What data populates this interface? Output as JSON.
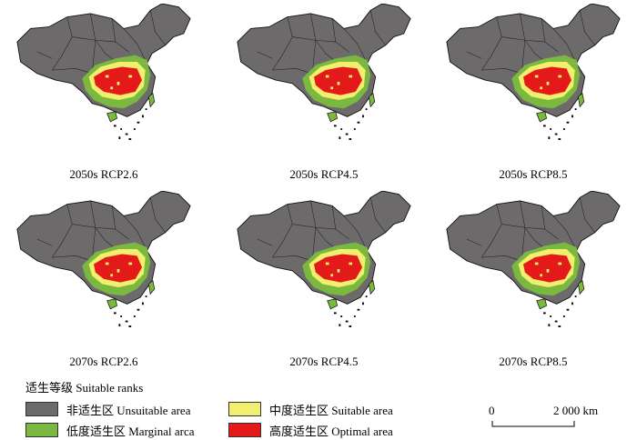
{
  "maps": [
    {
      "caption": "2050s RCP2.6"
    },
    {
      "caption": "2050s RCP4.5"
    },
    {
      "caption": "2050s RCP8.5"
    },
    {
      "caption": "2070s RCP2.6"
    },
    {
      "caption": "2070s RCP4.5"
    },
    {
      "caption": "2070s RCP8.5"
    }
  ],
  "legend": {
    "title": "适生等级 Suitable ranks",
    "items": [
      {
        "label": "非适生区 Unsuitable area",
        "color": "#6d6a6c"
      },
      {
        "label": "中度适生区 Suitable area",
        "color": "#f2ef6e"
      },
      {
        "label": "低度适生区 Marginal arca",
        "color": "#7ab83f"
      },
      {
        "label": "高度适生区 Optimal area",
        "color": "#e3191a"
      }
    ]
  },
  "scale": {
    "start_label": "0",
    "end_label": "2 000 km"
  }
}
